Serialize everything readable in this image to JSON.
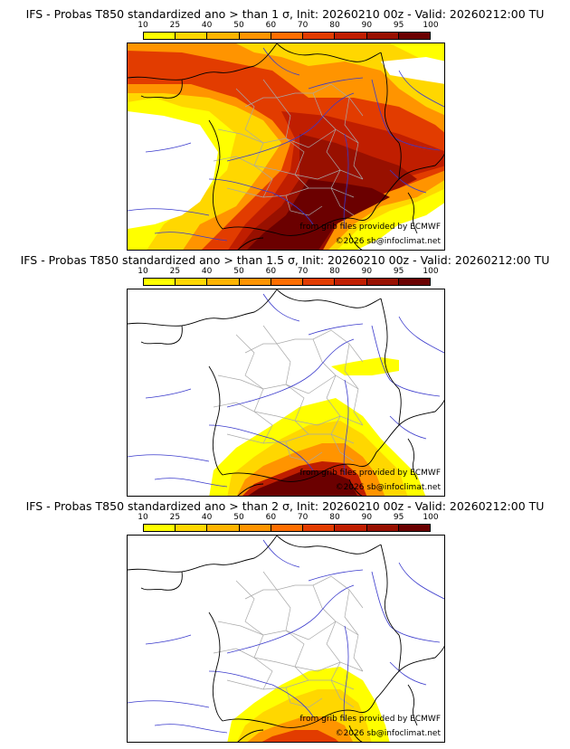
{
  "colorbar": {
    "ticks": [
      "10",
      "25",
      "40",
      "50",
      "60",
      "70",
      "80",
      "90",
      "95",
      "100"
    ],
    "colors": [
      "#ffff00",
      "#ffd700",
      "#ffb400",
      "#ff9400",
      "#ff6e00",
      "#e23c00",
      "#c01e00",
      "#981000",
      "#6b0000"
    ]
  },
  "panels": [
    {
      "title": "IFS - Probas T850  standardized ano > than 1 σ, Init: 20260210 00z - Valid: 20260212:00 TU",
      "credit_source": "from grib files provided by ECMWF",
      "credit_copyright": "©2026 sb@infoclimat.net",
      "threshold": "1 σ"
    },
    {
      "title": "IFS - Probas T850  standardized ano > than 1.5 σ, Init: 20260210 00z - Valid: 20260212:00 TU",
      "credit_source": "from grib files provided by ECMWF",
      "credit_copyright": "©2026 sb@infoclimat.net",
      "threshold": "1.5 σ"
    },
    {
      "title": "IFS - Probas T850  standardized ano > than 2 σ, Init: 20260210 00z - Valid: 20260212:00 TU",
      "credit_source": "from grib files provided by ECMWF",
      "credit_copyright": "©2026 sb@infoclimat.net",
      "threshold": "2 σ"
    }
  ]
}
